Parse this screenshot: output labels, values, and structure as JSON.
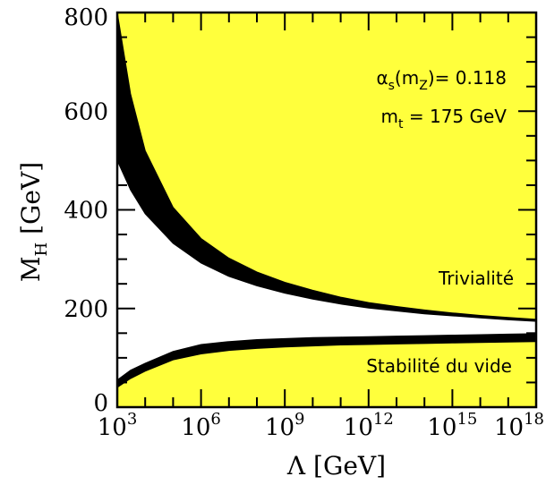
{
  "chart_data": {
    "type": "area",
    "x_scale": "log10",
    "xlim": [
      1000,
      1e+18
    ],
    "ylim": [
      0,
      800
    ],
    "x_ticks": [
      {
        "base": "10",
        "exp": "3",
        "value": 1000
      },
      {
        "base": "10",
        "exp": "6",
        "value": 1000000
      },
      {
        "base": "10",
        "exp": "9",
        "value": 1000000000
      },
      {
        "base": "10",
        "exp": "12",
        "value": 1000000000000
      },
      {
        "base": "10",
        "exp": "15",
        "value": 1000000000000000
      },
      {
        "base": "10",
        "exp": "18",
        "value": 1000000000000000000
      }
    ],
    "y_ticks": [
      "0",
      "200",
      "400",
      "600",
      "800"
    ],
    "y_tick_values": [
      0,
      200,
      400,
      600,
      800
    ],
    "xlabel": "Λ  [GeV]",
    "ylabel": {
      "base": "M",
      "sub": "H",
      "rest": "  [GeV]"
    },
    "grid": false,
    "series": [
      {
        "name": "Trivialité",
        "region": "above",
        "color": "#ffff3c",
        "x": [
          1000,
          3000,
          10000,
          100000,
          1000000,
          10000000,
          100000000,
          1000000000,
          10000000000,
          100000000000.0,
          1000000000000.0,
          10000000000000.0,
          100000000000000.0,
          1000000000000000.0,
          1e+16,
          1e+17,
          1e+18
        ],
        "lower": [
          500,
          440,
          392,
          332,
          292,
          265,
          246,
          231,
          219,
          209,
          201,
          195,
          189,
          185,
          181,
          177,
          174
        ],
        "upper": [
          800,
          635,
          520,
          405,
          342,
          302,
          274,
          253,
          237,
          223,
          212,
          204,
          197,
          191,
          186,
          182,
          178
        ]
      },
      {
        "name": "Stabilité du vide",
        "region": "below",
        "color": "#ffff3c",
        "x": [
          1000,
          3000,
          10000,
          100000,
          1000000,
          10000000,
          100000000,
          1000000000,
          10000000000,
          100000000000.0,
          1000000000000.0,
          10000000000000.0,
          100000000000000.0,
          1000000000000000.0,
          1e+16,
          1e+17,
          1e+18
        ],
        "lower": [
          40,
          58,
          73,
          96,
          108,
          115,
          119,
          122,
          124,
          126,
          127,
          128,
          129,
          130,
          131,
          132,
          133
        ],
        "upper": [
          55,
          75,
          89,
          113,
          127,
          133,
          137,
          139,
          141,
          142,
          143,
          144,
          145,
          146,
          147,
          148,
          149
        ]
      }
    ],
    "annotations": [
      {
        "id": "alpha",
        "parts": [
          "α",
          "s",
          "(m",
          "Z",
          ")= 0.118"
        ]
      },
      {
        "id": "mtop",
        "parts": [
          "m",
          "t",
          " = 175 GeV"
        ]
      }
    ],
    "band_color": "#000000",
    "fill_color": "#ffff3c"
  }
}
